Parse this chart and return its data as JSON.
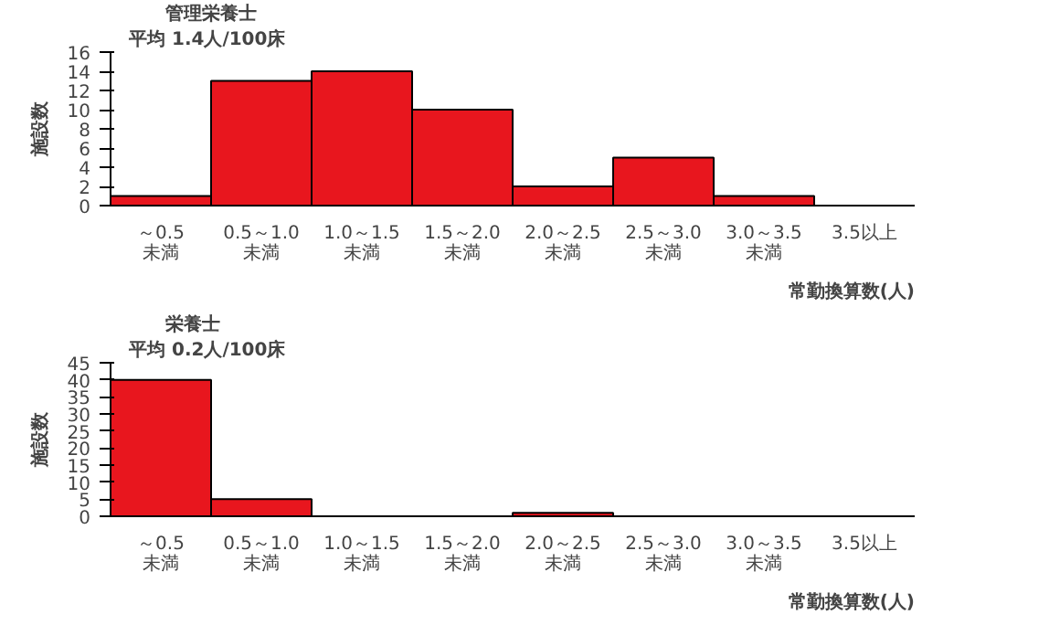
{
  "chart_data": [
    {
      "type": "bar",
      "title": "管理栄養士",
      "subtitle": "平均 1.4人/100床",
      "xlabel": "常勤換算数(人)",
      "ylabel": "施設数",
      "categories": [
        "～0.5未満",
        "0.5～1.0未満",
        "1.0～1.5未満",
        "1.5～2.0未満",
        "2.0～2.5未満",
        "2.5～3.0未満",
        "3.0～3.5未満",
        "3.5以上"
      ],
      "values": [
        1,
        13,
        14,
        10,
        2,
        5,
        1,
        0
      ],
      "color": "#e8161e",
      "ylim": [
        0,
        16
      ],
      "yticks": [
        0,
        2,
        4,
        6,
        8,
        10,
        12,
        14,
        16
      ],
      "grid": false
    },
    {
      "type": "bar",
      "title": "栄養士",
      "subtitle": "平均 0.2人/100床",
      "xlabel": "常勤換算数(人)",
      "ylabel": "施設数",
      "categories": [
        "～0.5未満",
        "0.5～1.0未満",
        "1.0～1.5未満",
        "1.5～2.0未満",
        "2.0～2.5未満",
        "2.5～3.0未満",
        "3.0～3.5未満",
        "3.5以上"
      ],
      "values": [
        40,
        5,
        0,
        0,
        1,
        0,
        0,
        0
      ],
      "color": "#e8161e",
      "ylim": [
        0,
        45
      ],
      "yticks": [
        0,
        5,
        10,
        15,
        20,
        25,
        30,
        35,
        40,
        45
      ],
      "grid": false
    }
  ]
}
